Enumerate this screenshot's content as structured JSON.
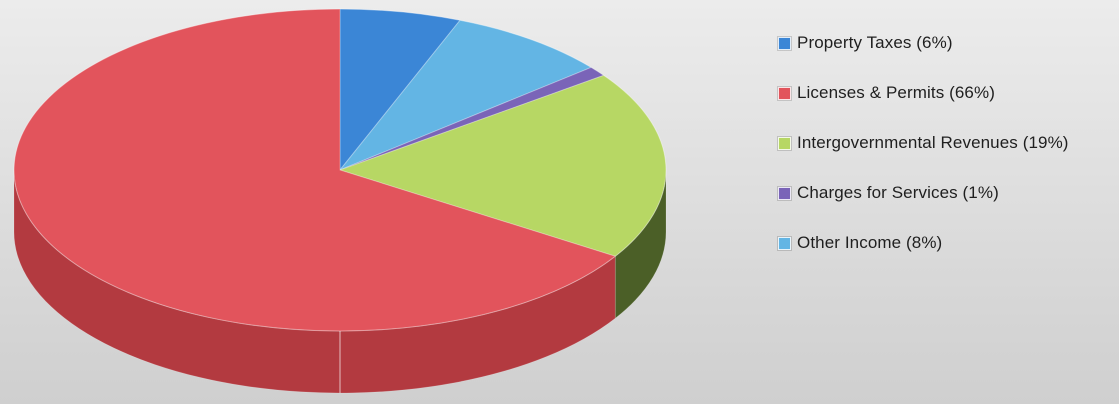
{
  "chart_data": {
    "type": "pie",
    "style": "3d",
    "legend_position": "right",
    "slices": [
      {
        "label": "Property Taxes (6%)",
        "value": 6,
        "color": "#3b86d6",
        "side_color": "#1f5f93"
      },
      {
        "label": "Licenses & Permits (66%)",
        "value": 66,
        "color": "#e2545c",
        "side_color": "#b33a40"
      },
      {
        "label": "Intergovernmental Revenues (19%)",
        "value": 19,
        "color": "#b7d764",
        "side_color": "#4b5f27"
      },
      {
        "label": "Charges for Services (1%)",
        "value": 1,
        "color": "#7a64b8",
        "side_color": "#453774"
      },
      {
        "label": "Other Income (8%)",
        "value": 8,
        "color": "#63b5e4",
        "side_color": "#2e6f8f"
      }
    ]
  }
}
